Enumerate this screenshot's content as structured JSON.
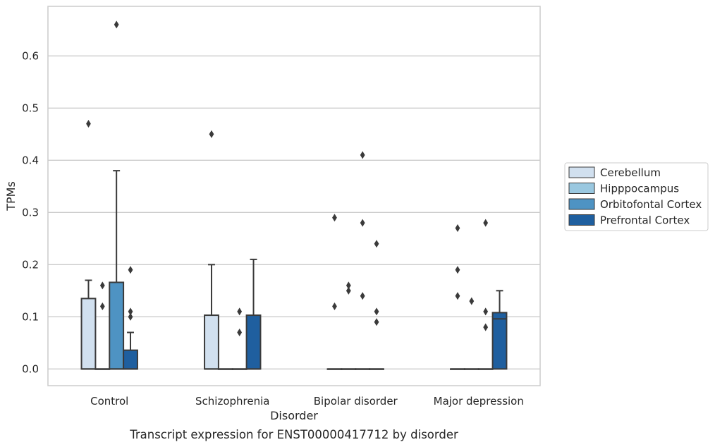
{
  "caption": "Transcript expression for ENST00000417712 by disorder",
  "colors": {
    "Cerebellum": "#d1e0ef",
    "Hipppocampus": "#9ac8e0",
    "Orbitofontal Cortex": "#4e93c3",
    "Prefrontal Cortex": "#1f5f9f",
    "box_edge": "#3a3a3a",
    "grid": "#cccccc"
  },
  "chart_data": {
    "type": "box",
    "xlabel": "Disorder",
    "ylabel": "TPMs",
    "categories": [
      "Control",
      "Schizophrenia",
      "Bipolar disorder",
      "Major depression"
    ],
    "yticks": [
      0.0,
      0.1,
      0.2,
      0.3,
      0.4,
      0.5,
      0.6
    ],
    "ytick_labels": [
      "0.0",
      "0.1",
      "0.2",
      "0.3",
      "0.4",
      "0.5",
      "0.6"
    ],
    "ylim": [
      -0.032,
      0.695
    ],
    "grid": "horizontal",
    "legend_position": "right",
    "series": [
      {
        "name": "Cerebellum",
        "boxes": [
          {
            "q1": 0,
            "median": 0,
            "q3": 0.135,
            "whislo": 0,
            "whishi": 0.17,
            "fliers": [
              0.47
            ]
          },
          {
            "q1": 0,
            "median": 0,
            "q3": 0.103,
            "whislo": 0,
            "whishi": 0.2,
            "fliers": [
              0.45
            ]
          },
          {
            "q1": 0,
            "median": 0,
            "q3": 0,
            "whislo": 0,
            "whishi": 0,
            "fliers": [
              0.29,
              0.12
            ]
          },
          {
            "q1": 0,
            "median": 0,
            "q3": 0,
            "whislo": 0,
            "whishi": 0,
            "fliers": [
              0.27,
              0.19,
              0.14
            ]
          }
        ]
      },
      {
        "name": "Hipppocampus",
        "boxes": [
          {
            "q1": 0,
            "median": 0,
            "q3": 0,
            "whislo": 0,
            "whishi": 0,
            "fliers": [
              0.16,
              0.12
            ]
          },
          {
            "q1": 0,
            "median": 0,
            "q3": 0,
            "whislo": 0,
            "whishi": 0,
            "fliers": []
          },
          {
            "q1": 0,
            "median": 0,
            "q3": 0,
            "whislo": 0,
            "whishi": 0,
            "fliers": [
              0.16,
              0.15
            ]
          },
          {
            "q1": 0,
            "median": 0,
            "q3": 0,
            "whislo": 0,
            "whishi": 0,
            "fliers": [
              0.13
            ]
          }
        ]
      },
      {
        "name": "Orbitofontal Cortex",
        "boxes": [
          {
            "q1": 0,
            "median": 0,
            "q3": 0.166,
            "whislo": 0,
            "whishi": 0.38,
            "fliers": [
              0.66
            ]
          },
          {
            "q1": 0,
            "median": 0,
            "q3": 0,
            "whislo": 0,
            "whishi": 0,
            "fliers": [
              0.11,
              0.07
            ]
          },
          {
            "q1": 0,
            "median": 0,
            "q3": 0,
            "whislo": 0,
            "whishi": 0,
            "fliers": [
              0.41,
              0.28,
              0.14
            ]
          },
          {
            "q1": 0,
            "median": 0,
            "q3": 0,
            "whislo": 0,
            "whishi": 0,
            "fliers": [
              0.28,
              0.11,
              0.08
            ]
          }
        ]
      },
      {
        "name": "Prefrontal Cortex",
        "boxes": [
          {
            "q1": 0,
            "median": 0,
            "q3": 0.036,
            "whislo": 0,
            "whishi": 0.07,
            "fliers": [
              0.19,
              0.11,
              0.1
            ]
          },
          {
            "q1": 0,
            "median": 0,
            "q3": 0.103,
            "whislo": 0,
            "whishi": 0.21,
            "fliers": []
          },
          {
            "q1": 0,
            "median": 0,
            "q3": 0,
            "whislo": 0,
            "whishi": 0,
            "fliers": [
              0.24,
              0.11,
              0.09
            ]
          },
          {
            "q1": 0,
            "median": 0.096,
            "q3": 0.108,
            "whislo": 0,
            "whishi": 0.15,
            "fliers": []
          }
        ]
      }
    ]
  }
}
